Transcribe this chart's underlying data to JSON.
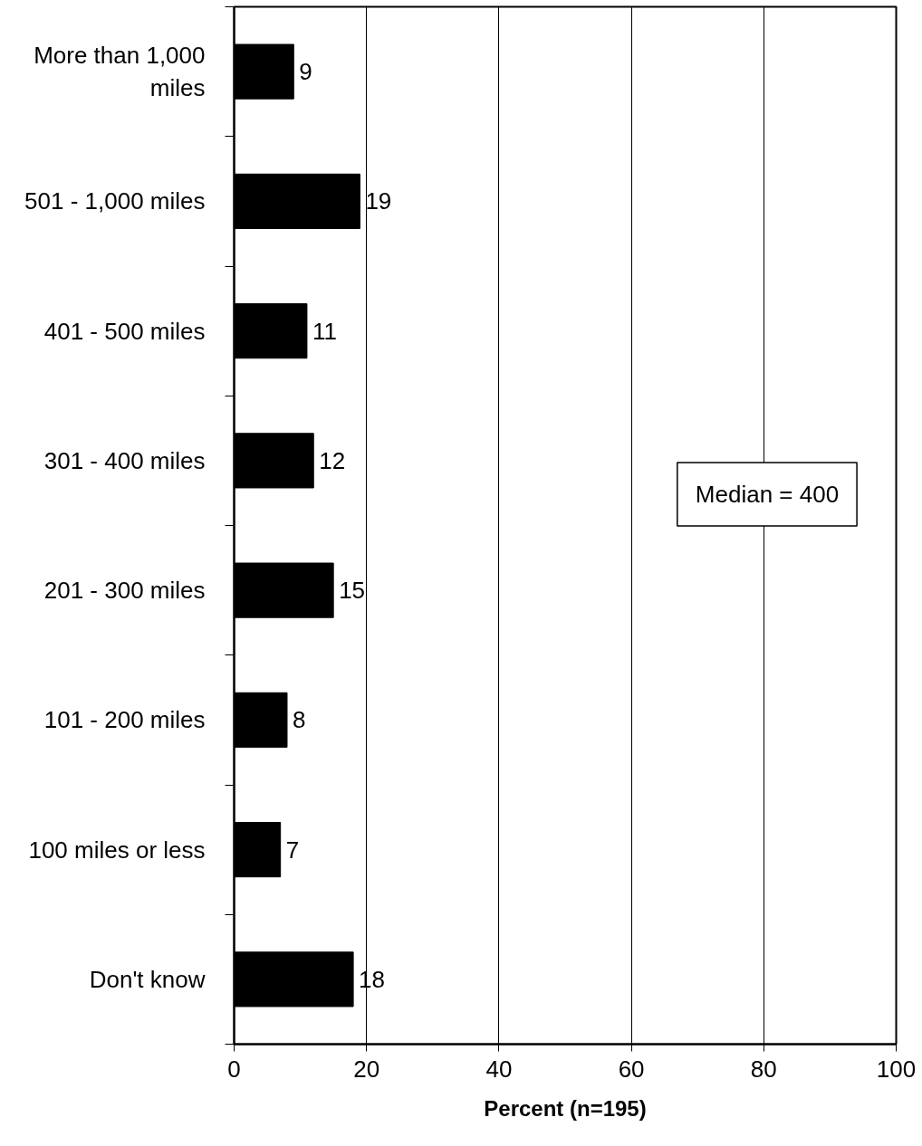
{
  "chart_data": {
    "type": "bar",
    "orientation": "horizontal",
    "categories": [
      "More than 1,000 miles",
      "501 - 1,000 miles",
      "401 - 500 miles",
      "301 - 400 miles",
      "201 - 300 miles",
      "101 - 200 miles",
      "100 miles or less",
      "Don't know"
    ],
    "values": [
      9,
      19,
      11,
      12,
      15,
      8,
      7,
      18
    ],
    "color": "#000000",
    "xlim": [
      0,
      100
    ],
    "xticks": [
      0,
      20,
      40,
      60,
      80,
      100
    ],
    "xlabel": "Percent (n=195)",
    "grid": "x",
    "data_labels": true,
    "annotations": [
      "Median = 400"
    ]
  }
}
